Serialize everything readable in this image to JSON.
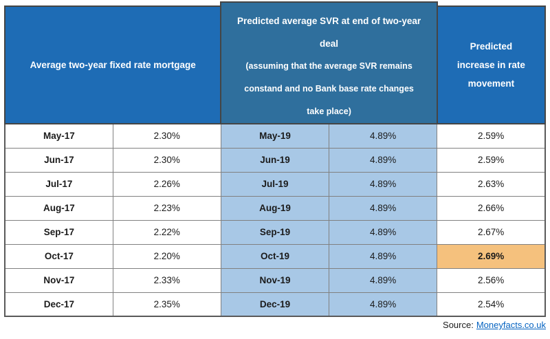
{
  "table": {
    "headers": {
      "fixed": "Average two-year fixed rate mortgage",
      "svr_title": "Predicted average SVR at end of two-year deal",
      "svr_note": "(assuming that the average SVR remains constand and no Bank base rate changes take place)",
      "increase": "Predicted increase in rate movement"
    },
    "rows": [
      {
        "fixed_month": "May-17",
        "fixed_rate": "2.30%",
        "svr_month": "May-19",
        "svr_rate": "4.89%",
        "increase": "2.59%",
        "highlight": false
      },
      {
        "fixed_month": "Jun-17",
        "fixed_rate": "2.30%",
        "svr_month": "Jun-19",
        "svr_rate": "4.89%",
        "increase": "2.59%",
        "highlight": false
      },
      {
        "fixed_month": "Jul-17",
        "fixed_rate": "2.26%",
        "svr_month": "Jul-19",
        "svr_rate": "4.89%",
        "increase": "2.63%",
        "highlight": false
      },
      {
        "fixed_month": "Aug-17",
        "fixed_rate": "2.23%",
        "svr_month": "Aug-19",
        "svr_rate": "4.89%",
        "increase": "2.66%",
        "highlight": false
      },
      {
        "fixed_month": "Sep-17",
        "fixed_rate": "2.22%",
        "svr_month": "Sep-19",
        "svr_rate": "4.89%",
        "increase": "2.67%",
        "highlight": false
      },
      {
        "fixed_month": "Oct-17",
        "fixed_rate": "2.20%",
        "svr_month": "Oct-19",
        "svr_rate": "4.89%",
        "increase": "2.69%",
        "highlight": true
      },
      {
        "fixed_month": "Nov-17",
        "fixed_rate": "2.33%",
        "svr_month": "Nov-19",
        "svr_rate": "4.89%",
        "increase": "2.56%",
        "highlight": false
      },
      {
        "fixed_month": "Dec-17",
        "fixed_rate": "2.35%",
        "svr_month": "Dec-19",
        "svr_rate": "4.89%",
        "increase": "2.54%",
        "highlight": false
      }
    ]
  },
  "footer": {
    "source_label": "Source:",
    "source_link": "Moneyfacts.co.uk"
  },
  "colors": {
    "header_blue": "#1E6CB5",
    "header_steel_blue": "#2F6F9D",
    "cell_light_blue": "#A8C8E6",
    "highlight_orange": "#F5C17D",
    "link_blue": "#0563C1"
  },
  "chart_data": {
    "type": "table",
    "column_groups": [
      "Average two-year fixed rate mortgage",
      "Predicted average SVR at end of two-year deal (assuming that the average SVR remains constand and no Bank base rate changes take place)",
      "Predicted increase in rate movement"
    ],
    "fixed_rate_months": [
      "May-17",
      "Jun-17",
      "Jul-17",
      "Aug-17",
      "Sep-17",
      "Oct-17",
      "Nov-17",
      "Dec-17"
    ],
    "fixed_rates_pct": [
      2.3,
      2.3,
      2.26,
      2.23,
      2.22,
      2.2,
      2.33,
      2.35
    ],
    "svr_months": [
      "May-19",
      "Jun-19",
      "Jul-19",
      "Aug-19",
      "Sep-19",
      "Oct-19",
      "Nov-19",
      "Dec-19"
    ],
    "predicted_svr_pct": [
      4.89,
      4.89,
      4.89,
      4.89,
      4.89,
      4.89,
      4.89,
      4.89
    ],
    "predicted_increase_pct": [
      2.59,
      2.59,
      2.63,
      2.66,
      2.67,
      2.69,
      2.56,
      2.54
    ],
    "highlighted_value": "2.69%",
    "highlighted_row": "Oct-19",
    "source": "Moneyfacts.co.uk"
  }
}
